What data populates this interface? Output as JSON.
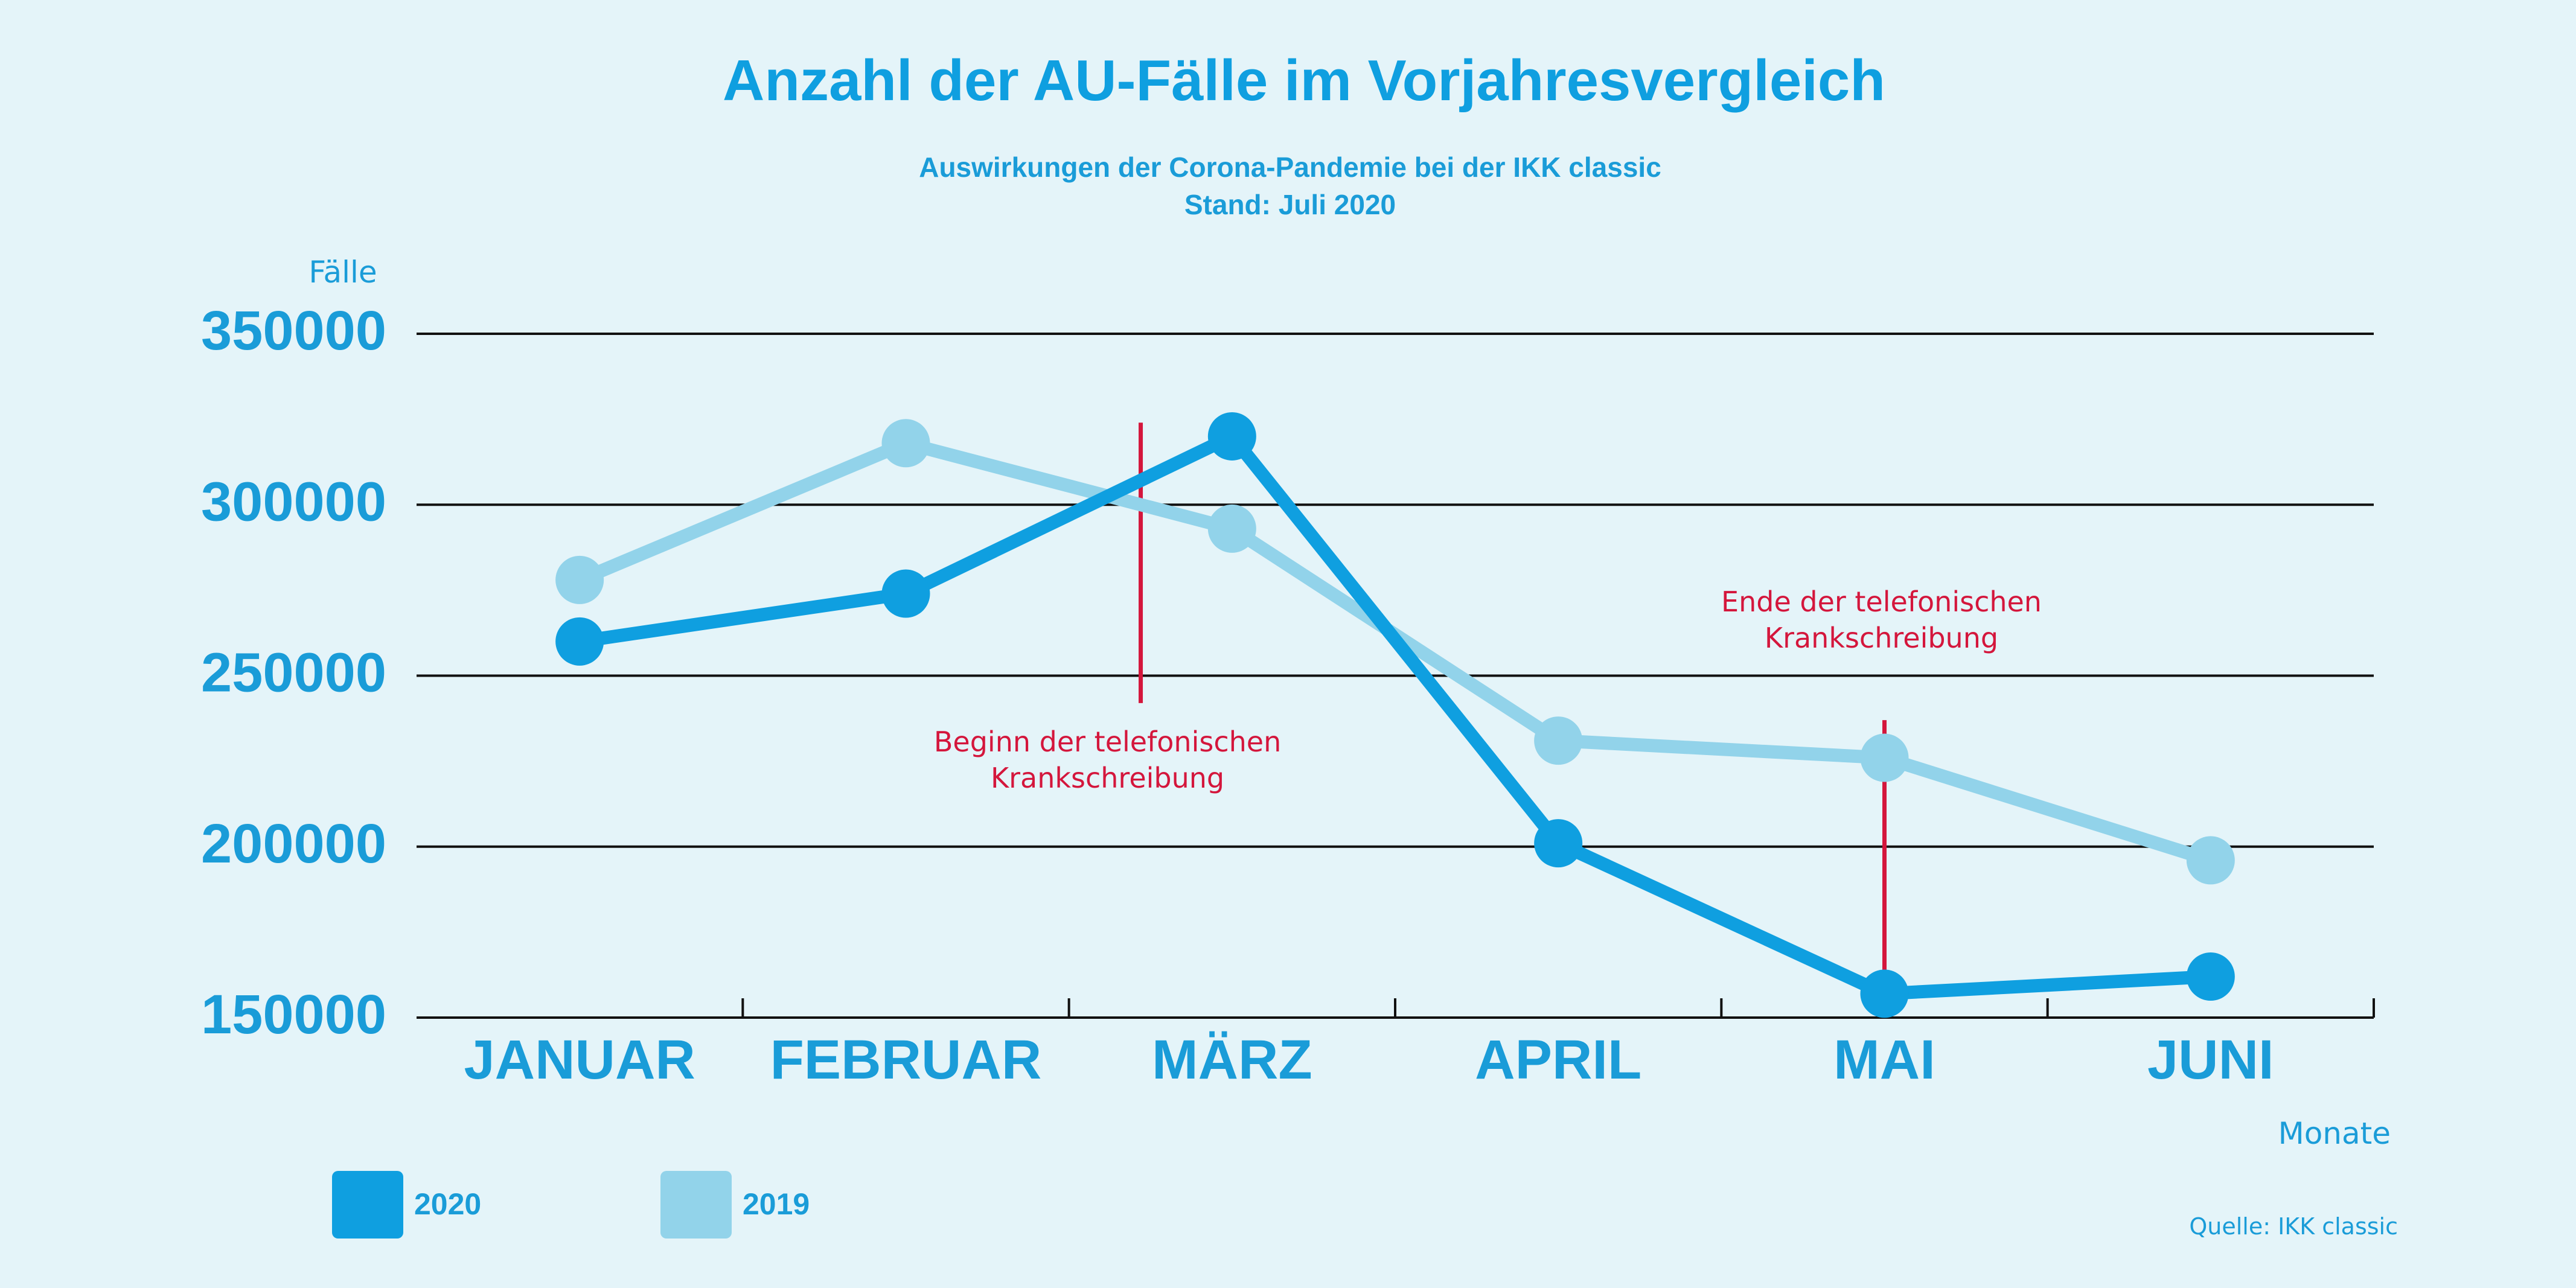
{
  "chart_data": {
    "type": "line",
    "title": "Anzahl der AU-Fälle im Vorjahresvergleich",
    "subtitle_lines": [
      "Auswirkungen der Corona-Pandemie bei der IKK classic",
      "Stand: Juli 2020"
    ],
    "ylabel": "Fälle",
    "xlabel": "Monate",
    "ylim": [
      150000,
      350000
    ],
    "yticks": [
      "150000",
      "200000",
      "250000",
      "300000",
      "350000"
    ],
    "categories": [
      "JANUAR",
      "FEBRUAR",
      "MÄRZ",
      "APRIL",
      "MAI",
      "JUNI"
    ],
    "series": [
      {
        "name": "2020",
        "color": "#0f9fe0",
        "values": [
          260000,
          274000,
          320000,
          201000,
          157000,
          162000
        ]
      },
      {
        "name": "2019",
        "color": "#92d3ea",
        "values": [
          278000,
          318000,
          293000,
          231000,
          226000,
          196000
        ]
      }
    ],
    "annotations": [
      {
        "lines": [
          "Beginn der telefonischen",
          "Krankschreibung"
        ],
        "position": 2.22,
        "from": 242000,
        "to": 324000,
        "color": "#d4163c"
      },
      {
        "lines": [
          "Ende der telefonischen",
          "Krankschreibung"
        ],
        "position": 4.5,
        "from": 158000,
        "to": 237000,
        "color": "#d4163c"
      }
    ],
    "grid": true,
    "legend_placement": "bottom-left",
    "source": "Quelle: IKK classic"
  }
}
